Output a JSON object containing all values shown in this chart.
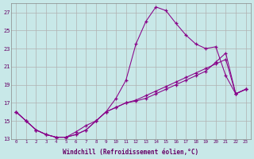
{
  "xlabel": "Windchill (Refroidissement éolien,°C)",
  "background_color": "#c8e8e8",
  "grid_color": "#b0b0b0",
  "line_color": "#880088",
  "xlim": [
    -0.5,
    23.5
  ],
  "ylim": [
    13,
    28
  ],
  "yticks": [
    13,
    15,
    17,
    19,
    21,
    23,
    25,
    27
  ],
  "xticks": [
    0,
    1,
    2,
    3,
    4,
    5,
    6,
    7,
    8,
    9,
    10,
    11,
    12,
    13,
    14,
    15,
    16,
    17,
    18,
    19,
    20,
    21,
    22,
    23
  ],
  "line1_x": [
    0,
    1,
    2,
    3,
    4,
    5,
    6,
    7,
    8,
    9,
    10,
    11,
    12,
    13,
    14,
    15,
    16,
    17,
    18,
    19,
    20,
    21,
    22,
    23
  ],
  "line1_y": [
    16.0,
    15.0,
    14.0,
    13.5,
    13.2,
    13.2,
    13.5,
    14.0,
    15.0,
    16.0,
    17.5,
    19.5,
    23.5,
    26.0,
    27.6,
    27.2,
    25.8,
    24.5,
    23.5,
    23.0,
    23.2,
    20.0,
    18.0,
    18.5
  ],
  "line2_x": [
    0,
    1,
    2,
    3,
    4,
    5,
    6,
    7,
    8,
    9,
    10,
    11,
    12,
    13,
    14,
    15,
    16,
    17,
    18,
    19,
    20,
    21,
    22,
    23
  ],
  "line2_y": [
    16.0,
    15.0,
    14.0,
    13.5,
    13.2,
    13.2,
    13.5,
    14.0,
    15.0,
    16.0,
    16.5,
    17.0,
    17.2,
    17.5,
    18.0,
    18.5,
    19.0,
    19.5,
    20.0,
    20.5,
    21.5,
    22.5,
    18.0,
    18.5
  ],
  "line3_x": [
    0,
    1,
    2,
    3,
    4,
    5,
    6,
    7,
    8,
    9,
    10,
    11,
    12,
    13,
    14,
    15,
    16,
    17,
    18,
    19,
    20,
    21,
    22,
    23
  ],
  "line3_y": [
    16.0,
    15.0,
    14.0,
    13.5,
    13.2,
    13.2,
    13.8,
    14.5,
    15.0,
    16.0,
    16.5,
    17.0,
    17.3,
    17.8,
    18.3,
    18.8,
    19.3,
    19.8,
    20.3,
    20.8,
    21.3,
    21.8,
    18.0,
    18.5
  ]
}
